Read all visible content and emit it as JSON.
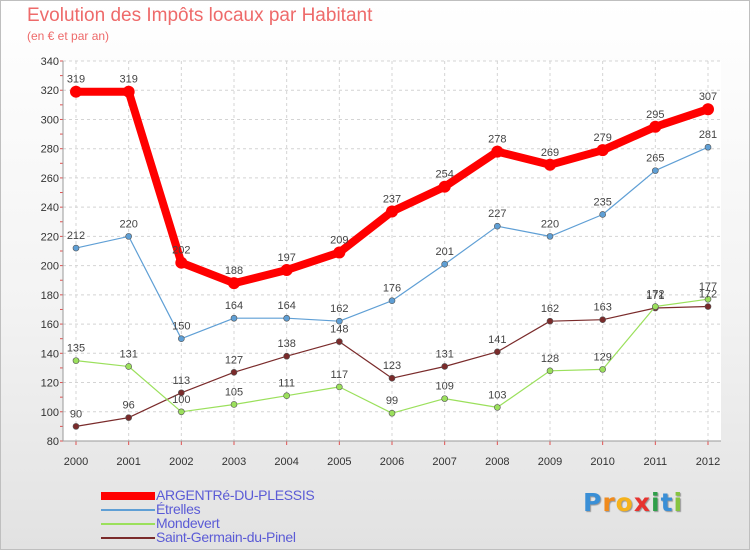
{
  "chart_data": {
    "type": "line",
    "title": "Evolution des Impôts locaux par Habitant",
    "subtitle": "(en € et par an)",
    "xlabel": "",
    "ylabel": "",
    "categories": [
      "2000",
      "2001",
      "2002",
      "2003",
      "2004",
      "2005",
      "2006",
      "2007",
      "2008",
      "2009",
      "2010",
      "2011",
      "2012"
    ],
    "ylim": [
      80,
      340
    ],
    "yticks": [
      80,
      100,
      120,
      140,
      160,
      180,
      200,
      220,
      240,
      260,
      280,
      300,
      320,
      340
    ],
    "grid": true,
    "legend_position": "bottom-left",
    "series": [
      {
        "name": "ARGENTRé-DU-PLESSIS",
        "color": "#ff0000",
        "values": [
          319,
          319,
          202,
          188,
          197,
          209,
          237,
          254,
          278,
          269,
          279,
          295,
          307
        ],
        "labels": [
          "319",
          "319",
          "202",
          "188",
          "197",
          "209",
          "237",
          "254",
          "278",
          "269",
          "279",
          "295",
          "307"
        ]
      },
      {
        "name": "Étrelles",
        "color": "#5f9fd5",
        "values": [
          212,
          220,
          150,
          164,
          164,
          162,
          176,
          201,
          227,
          220,
          235,
          265,
          281
        ],
        "labels": [
          "212",
          "220",
          "150",
          "164",
          "164",
          "162",
          "176",
          "201",
          "227",
          "220",
          "235",
          "265",
          "281"
        ]
      },
      {
        "name": "Mondevert",
        "color": "#9be05c",
        "values": [
          135,
          131,
          100,
          105,
          111,
          117,
          99,
          109,
          103,
          128,
          129,
          172,
          177
        ],
        "labels": [
          "135",
          "131",
          "100",
          "105",
          "111",
          "117",
          "99",
          "109",
          "103",
          "128",
          "129",
          "172",
          "177"
        ]
      },
      {
        "name": "Saint-Germain-du-Pinel",
        "color": "#7a2b2b",
        "values": [
          90,
          96,
          113,
          127,
          138,
          148,
          123,
          131,
          141,
          162,
          163,
          171,
          172
        ],
        "labels": [
          "90",
          "96",
          "113",
          "127",
          "138",
          "148",
          "123",
          "131",
          "141",
          "162",
          "163",
          "171",
          "172"
        ]
      }
    ]
  },
  "logo": {
    "letters": [
      "P",
      "r",
      "o",
      "x",
      "i",
      "t",
      "i"
    ],
    "colors": [
      "#3a8fd6",
      "#f08a1c",
      "#f5b21b",
      "#e7332f",
      "#2f9f4a",
      "#3a8fd6",
      "#86c440"
    ]
  }
}
